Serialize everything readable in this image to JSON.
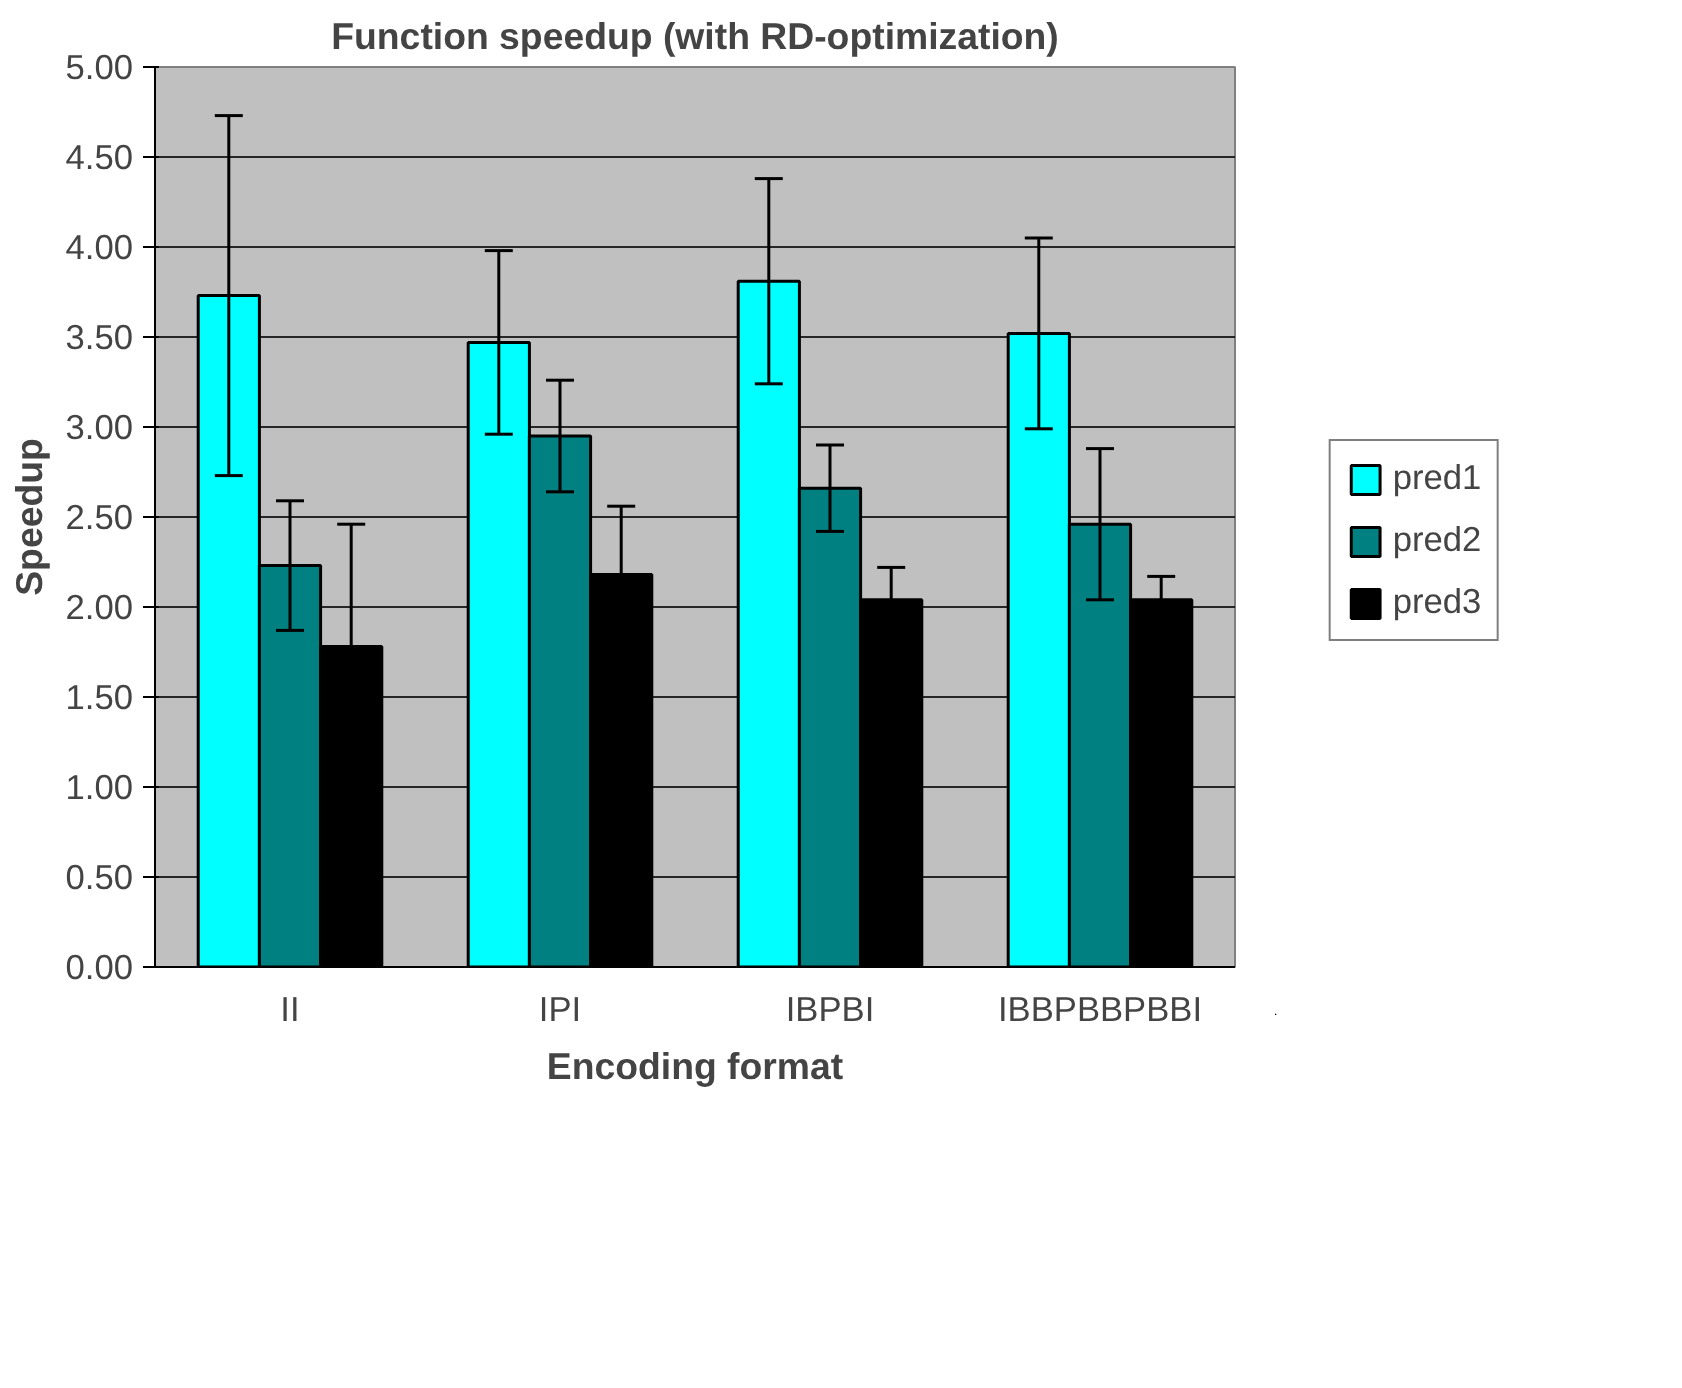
{
  "chart_data": {
    "type": "bar",
    "title": "Function speedup (with RD-optimization)",
    "xlabel": "Encoding format",
    "ylabel": "Speedup",
    "categories": [
      "II",
      "IPI",
      "IBPBI",
      "IBBPBBPBBI"
    ],
    "series": [
      {
        "name": "pred1",
        "color": "#00ffff",
        "values": [
          3.73,
          3.47,
          3.81,
          3.52
        ],
        "errors": [
          1.0,
          0.51,
          0.57,
          0.53
        ]
      },
      {
        "name": "pred2",
        "color": "#008080",
        "values": [
          2.23,
          2.95,
          2.66,
          2.46
        ],
        "errors": [
          0.36,
          0.31,
          0.24,
          0.42
        ]
      },
      {
        "name": "pred3",
        "color": "#000000",
        "values": [
          1.78,
          2.18,
          2.04,
          2.04
        ],
        "errors": [
          0.68,
          0.38,
          0.18,
          0.13
        ]
      }
    ],
    "ylim": [
      0,
      5
    ],
    "yticks": [
      {
        "value": 0,
        "label": "0.00"
      },
      {
        "value": 0.5,
        "label": "0.50"
      },
      {
        "value": 1,
        "label": "1.00"
      },
      {
        "value": 1.5,
        "label": "1.50"
      },
      {
        "value": 2,
        "label": "2.00"
      },
      {
        "value": 2.5,
        "label": "2.50"
      },
      {
        "value": 3,
        "label": "3.00"
      },
      {
        "value": 3.5,
        "label": "3.50"
      },
      {
        "value": 4,
        "label": "4.00"
      },
      {
        "value": 4.5,
        "label": "4.50"
      },
      {
        "value": 5,
        "label": "5.00"
      }
    ],
    "grid": "y",
    "legend": "right"
  }
}
